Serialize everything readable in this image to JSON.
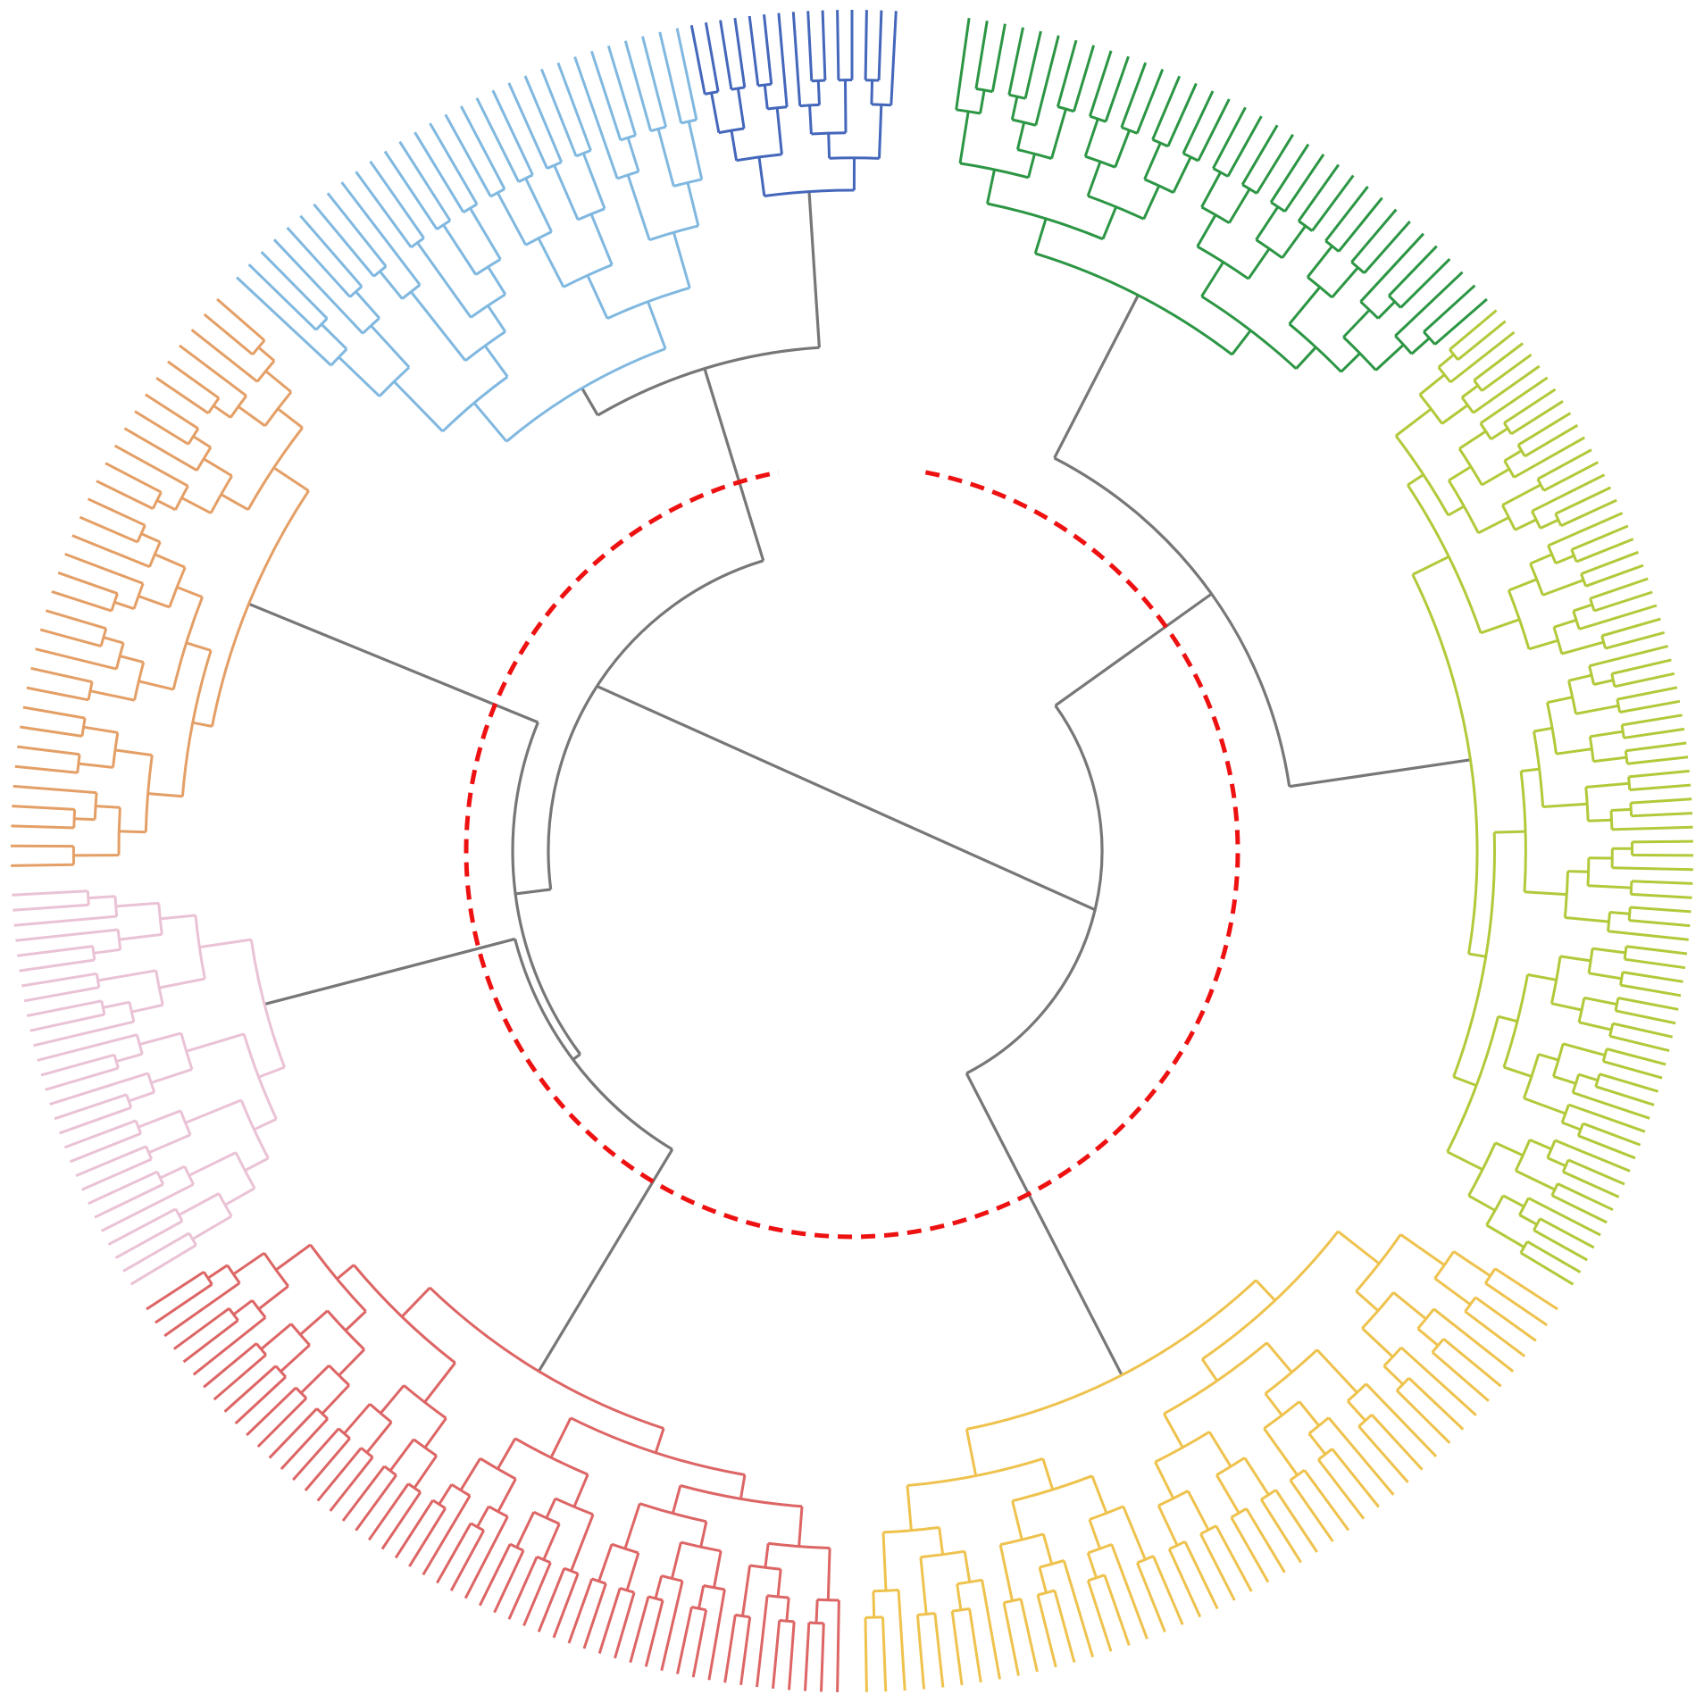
{
  "diagram": {
    "type": "circular-dendrogram",
    "trunk_color": "#777777",
    "cut_line_color": "#ee1111",
    "clusters": [
      {
        "id": "dark-blue",
        "color": "#4467bb",
        "leaves": 15
      },
      {
        "id": "light-blue",
        "color": "#80b8e0",
        "leaves": 30
      },
      {
        "id": "orange",
        "color": "#e49f66",
        "leaves": 32
      },
      {
        "id": "pink",
        "color": "#eac2d6",
        "leaves": 28
      },
      {
        "id": "red",
        "color": "#dd6565",
        "leaves": 52
      },
      {
        "id": "yellow",
        "color": "#eec24d",
        "leaves": 44
      },
      {
        "id": "lime",
        "color": "#b2c93a",
        "leaves": 75
      },
      {
        "id": "green",
        "color": "#2c9644",
        "leaves": 34
      }
    ]
  }
}
